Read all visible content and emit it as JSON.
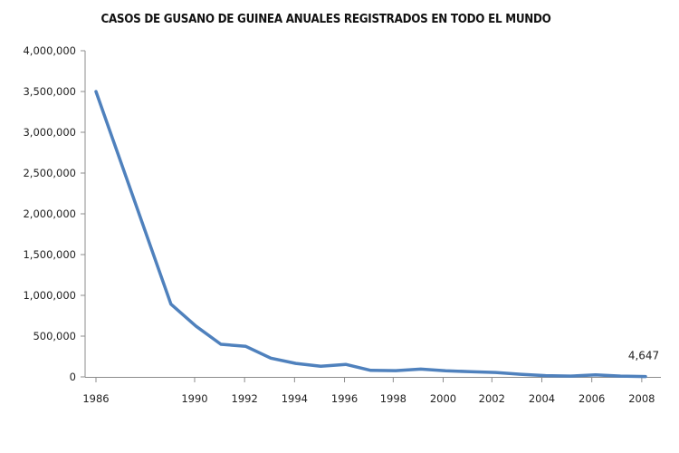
{
  "chart_data": {
    "type": "line",
    "title": "CASOS DE GUSANO DE GUINEA ANUALES REGISTRADOS EN TODO EL MUNDO",
    "xlabel": "",
    "ylabel": "",
    "xlim": [
      1986,
      2008
    ],
    "ylim": [
      0,
      4000000
    ],
    "x_ticks": [
      "1986",
      "1990",
      "1992",
      "1994",
      "1996",
      "1998",
      "2000",
      "2002",
      "2004",
      "2006",
      "2008"
    ],
    "x_tick_values": [
      1986,
      1989.95,
      1991.95,
      1993.95,
      1995.95,
      1997.9,
      1999.9,
      2001.85,
      2003.85,
      2005.85,
      2007.85
    ],
    "y_ticks": [
      "0",
      "500,000",
      "1,000,000",
      "1,500,000",
      "2,000,000",
      "2,500,000",
      "3,000,000",
      "3,500,000",
      "4,000,000"
    ],
    "y_tick_values": [
      0,
      500000,
      1000000,
      1500000,
      2000000,
      2500000,
      3000000,
      3500000,
      4000000
    ],
    "series": [
      {
        "color": "#4f81bd",
        "x": [
          1986,
          1989,
          1990,
          1991,
          1992,
          1993,
          1994,
          1995,
          1996,
          1997,
          1998,
          1999,
          2000,
          2001,
          2002,
          2003,
          2004,
          2005,
          2006,
          2007,
          2008
        ],
        "values": [
          3500000,
          892000,
          623000,
          400000,
          375000,
          230000,
          165000,
          130000,
          153000,
          80000,
          77000,
          96000,
          75000,
          64000,
          55000,
          32000,
          16000,
          10000,
          25000,
          10000,
          4647
        ]
      }
    ],
    "annotations": [
      {
        "text": "4,647",
        "x": 2008,
        "y": 4647
      }
    ],
    "grid": false,
    "legend": "none"
  }
}
